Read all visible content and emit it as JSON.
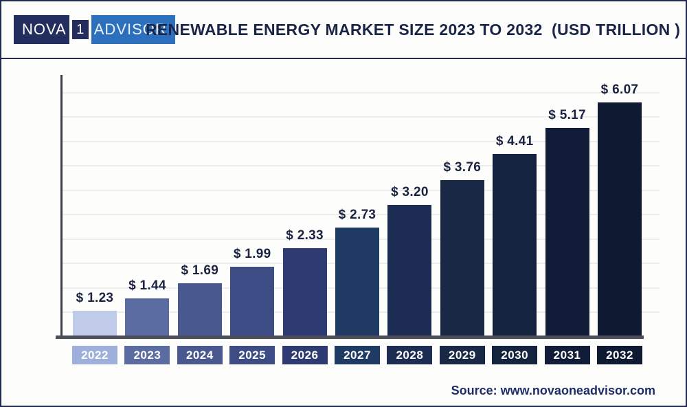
{
  "header": {
    "logo": {
      "part1": "NOVA",
      "digit": "1",
      "part2": "ADVISOR"
    },
    "title": "RENEWABLE ENERGY MARKET SIZE 2023 TO 2032  (USD TRILLION )"
  },
  "footer": {
    "source_label": "Source: www.novaoneadvisor.com"
  },
  "colors": {
    "outer_border": "#252c54",
    "title_text": "#1b2547",
    "logo_navy": "#242e5e",
    "logo_blue": "#2c70bd",
    "axis_line": "#383d47",
    "baseline": "#4a4f5a",
    "gridline": "#ededf0",
    "value_label_text": "#1b2340",
    "year_label_text": "#ffffff",
    "source_text": "#1f2e6b"
  },
  "chart_data": {
    "type": "bar",
    "title": "RENEWABLE ENERGY MARKET SIZE 2023 TO 2032 (USD TRILLION)",
    "unit": "USD Trillion",
    "xlabel": "",
    "ylabel": "",
    "ylim": [
      0,
      6.5
    ],
    "grid": "horizontal-light-gray",
    "legend": "none",
    "value_prefix": "$ ",
    "categories": [
      "2022",
      "2023",
      "2024",
      "2025",
      "2026",
      "2027",
      "2028",
      "2029",
      "2030",
      "2031",
      "2032"
    ],
    "values": [
      1.23,
      1.44,
      1.69,
      1.99,
      2.33,
      2.73,
      3.2,
      3.76,
      4.41,
      5.17,
      6.07
    ],
    "value_labels": [
      "$ 1.23",
      "$ 1.44",
      "$ 1.69",
      "$ 1.99",
      "$ 2.33",
      "$ 2.73",
      "$ 3.20",
      "$ 3.76",
      "$ 4.41",
      "$ 5.17",
      "$ 6.07"
    ],
    "bar_colors": [
      "#c0cae9",
      "#5a6ca1",
      "#49598f",
      "#3e4c86",
      "#2e3b73",
      "#1f3a63",
      "#1c2c53",
      "#182845",
      "#14233e",
      "#111d38",
      "#0e1a32"
    ],
    "tick_box_colors": [
      "#9fafdc",
      "#5a6ca1",
      "#49598f",
      "#3e4c86",
      "#2e3b73",
      "#1f3a63",
      "#1c2c53",
      "#182845",
      "#14233e",
      "#111d38",
      "#0e1a32"
    ]
  }
}
